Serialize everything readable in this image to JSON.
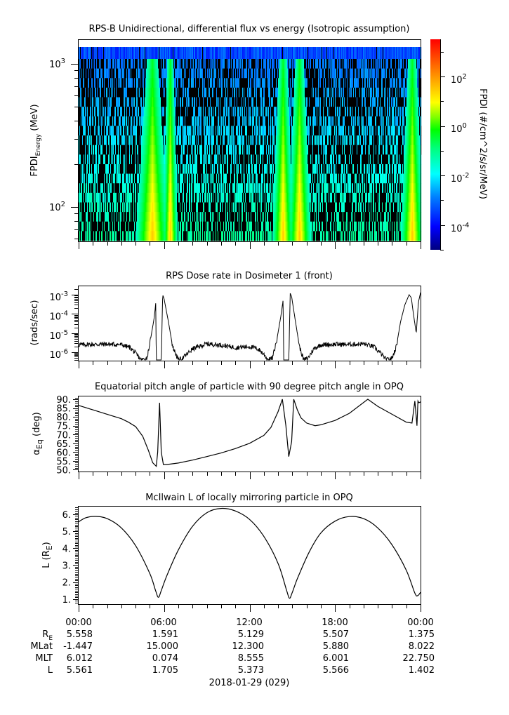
{
  "chart_data": [
    {
      "type": "heatmap",
      "title": "RPS-B  Unidirectional, differential flux vs energy (Isotropic assumption)",
      "ylabel_main": "FPDI",
      "ylabel_sub": "Energy",
      "ylabel_unit": " (MeV)",
      "yscale": "log",
      "ylim": [
        56,
        1500
      ],
      "yticks": [
        {
          "base": "10",
          "exp": "3",
          "value": 1000
        },
        {
          "base": "10",
          "exp": "2",
          "value": 100
        }
      ],
      "xlim_hours": [
        0,
        24
      ],
      "energy_channels": 20,
      "description_of_features": "background low counts; high-flux bands near radiation belt passes",
      "high_flux_bands_hours": [
        [
          4.3,
          6.0
        ],
        [
          6.1,
          6.7
        ],
        [
          13.8,
          14.8
        ],
        [
          14.9,
          16.0
        ],
        [
          22.8,
          23.9
        ]
      ],
      "colorbar": {
        "label": "FPDI (#/cm^2/s/sr/MeV)",
        "scale": "log",
        "range_log10": [
          -5.0,
          3.5
        ],
        "ticks": [
          {
            "base": "10",
            "exp": "2",
            "value": 100
          },
          {
            "base": "10",
            "exp": "0",
            "value": 1
          },
          {
            "base": "10",
            "exp": "-2",
            "value": 0.01
          },
          {
            "base": "10",
            "exp": "-4",
            "value": 0.0001
          }
        ],
        "colormap": [
          "#00007f",
          "#0000ff",
          "#007fff",
          "#00ffff",
          "#00ff7f",
          "#00ff00",
          "#7fff00",
          "#ffff00",
          "#ff7f00",
          "#ff0000"
        ]
      }
    },
    {
      "type": "line",
      "title": "RPS  Dose rate in Dosimeter 1 (front)",
      "ylabel": "(rads/sec)",
      "yscale": "log",
      "ylim": [
        3e-07,
        0.002
      ],
      "yticks": [
        {
          "base": "10",
          "exp": "-3",
          "value": 0.001
        },
        {
          "base": "10",
          "exp": "-4",
          "value": 0.0001
        },
        {
          "base": "10",
          "exp": "-5",
          "value": 1e-05
        },
        {
          "base": "10",
          "exp": "-6",
          "value": 1e-06
        }
      ],
      "x_hours": [
        0,
        1,
        2,
        3,
        3.6,
        4.0,
        4.4,
        4.8,
        5.0,
        5.3,
        5.42,
        5.45,
        5.8,
        5.9,
        6.0,
        6.3,
        6.6,
        7.0,
        7.3,
        8,
        9,
        10,
        11,
        12,
        12.6,
        13.0,
        13.3,
        13.6,
        13.9,
        14.2,
        14.35,
        14.4,
        14.75,
        14.85,
        14.95,
        15.2,
        15.5,
        15.8,
        16.1,
        16.5,
        17,
        18,
        19,
        20,
        20.7,
        21.2,
        21.6,
        22.0,
        22.3,
        22.6,
        22.9,
        23.2,
        23.35,
        23.5,
        23.7,
        23.85,
        24
      ],
      "y_values": [
        2.5e-06,
        2.6e-06,
        2.7e-06,
        2.5e-06,
        1.8e-06,
        9e-07,
        4e-07,
        5e-07,
        3e-06,
        6e-05,
        0.0004,
        3e-07,
        3e-07,
        0.001,
        0.0006,
        4e-05,
        2e-06,
        4e-07,
        5e-07,
        1.5e-06,
        2.8e-06,
        2.4e-06,
        1.8e-06,
        2e-06,
        1.5e-06,
        8e-07,
        4e-07,
        5e-07,
        4e-06,
        8e-05,
        0.0005,
        3e-07,
        3e-07,
        0.0012,
        0.0008,
        5e-05,
        2e-06,
        4e-07,
        5e-07,
        1.5e-06,
        2.5e-06,
        2.6e-06,
        2.6e-06,
        2.8e-06,
        2e-06,
        9e-07,
        4e-07,
        5e-07,
        2e-06,
        4e-05,
        0.0003,
        0.001,
        0.0007,
        0.0001,
        1e-05,
        0.0004,
        0.0013
      ]
    },
    {
      "type": "line",
      "title": "Equatorial pitch angle of particle with 90 degree pitch angle in OPQ",
      "ylabel_main": "α",
      "ylabel_sub": "Eq",
      "ylabel_unit": " (deg)",
      "ylim": [
        49,
        92
      ],
      "yticks": [
        "90.",
        "85.",
        "80.",
        "75.",
        "70.",
        "65.",
        "60.",
        "55.",
        "50."
      ],
      "ytick_values": [
        90,
        85,
        80,
        75,
        70,
        65,
        60,
        55,
        50
      ],
      "x_hours": [
        0,
        1,
        2,
        3,
        3.5,
        4.0,
        4.5,
        4.9,
        5.2,
        5.45,
        5.55,
        5.68,
        5.8,
        5.95,
        6.2,
        7,
        8,
        9,
        10,
        11,
        12,
        13,
        13.5,
        14,
        14.3,
        14.55,
        14.75,
        14.95,
        15.1,
        15.35,
        15.6,
        16,
        16.6,
        17,
        18,
        19,
        20.3,
        21,
        22,
        23,
        23.4,
        23.6,
        23.75,
        23.82,
        23.88,
        24
      ],
      "y_values": [
        86.5,
        84,
        81.5,
        79,
        77,
        74.5,
        69,
        61,
        54,
        52,
        60,
        88,
        60,
        53,
        53,
        53.8,
        55.5,
        57.5,
        59.5,
        62,
        65,
        69.5,
        74,
        83,
        90,
        75,
        57.5,
        66,
        90,
        84,
        79.5,
        76.5,
        75,
        75.5,
        78,
        82,
        90,
        86,
        81.5,
        77,
        76.5,
        89,
        75,
        89,
        88,
        88.5
      ]
    },
    {
      "type": "line",
      "title": "McIlwain L of locally mirroring particle in OPQ",
      "ylabel_main": "L (R",
      "ylabel_sub": "E",
      "ylabel_unit": ")",
      "ylim": [
        0.7,
        6.5
      ],
      "yticks": [
        "6.",
        "5.",
        "4.",
        "3.",
        "2.",
        "1."
      ],
      "ytick_values": [
        6,
        5,
        4,
        3,
        2,
        1
      ],
      "x_hours": [
        0,
        0.5,
        1.2,
        2,
        3,
        4,
        5,
        5.4,
        5.6,
        5.8,
        6.2,
        7,
        8,
        9,
        10,
        11,
        12,
        13,
        14,
        14.6,
        14.8,
        15.0,
        15.4,
        16.2,
        17,
        18,
        19,
        20,
        21,
        22,
        23,
        23.6,
        23.8,
        24
      ],
      "y_values": [
        5.56,
        5.8,
        5.88,
        5.75,
        5.2,
        4.15,
        2.5,
        1.5,
        1.1,
        1.5,
        2.4,
        3.9,
        5.3,
        6.1,
        6.35,
        6.2,
        5.7,
        4.7,
        3.1,
        1.5,
        1.05,
        1.4,
        2.3,
        3.8,
        4.9,
        5.6,
        5.87,
        5.75,
        5.2,
        4.2,
        2.7,
        1.35,
        1.2,
        1.4
      ]
    }
  ],
  "time_axis": {
    "ticks": [
      "00:00",
      "06:00",
      "12:00",
      "18:00",
      "00:00"
    ],
    "tick_hours": [
      0,
      6,
      12,
      18,
      24
    ],
    "date_label": "2018-01-29 (029)"
  },
  "ephemeris": {
    "rows": [
      {
        "label_main": "R",
        "label_sub": "E",
        "values": [
          "5.558",
          "1.591",
          "5.129",
          "5.507",
          "1.375"
        ]
      },
      {
        "label_main": "MLat",
        "label_sub": "",
        "values": [
          "-1.447",
          "15.000",
          "12.300",
          "5.880",
          "8.022"
        ]
      },
      {
        "label_main": "MLT",
        "label_sub": "",
        "values": [
          "6.012",
          "0.074",
          "8.555",
          "6.001",
          "22.750"
        ]
      },
      {
        "label_main": "L",
        "label_sub": "",
        "values": [
          "5.561",
          "1.705",
          "5.373",
          "5.566",
          "1.402"
        ]
      }
    ]
  }
}
